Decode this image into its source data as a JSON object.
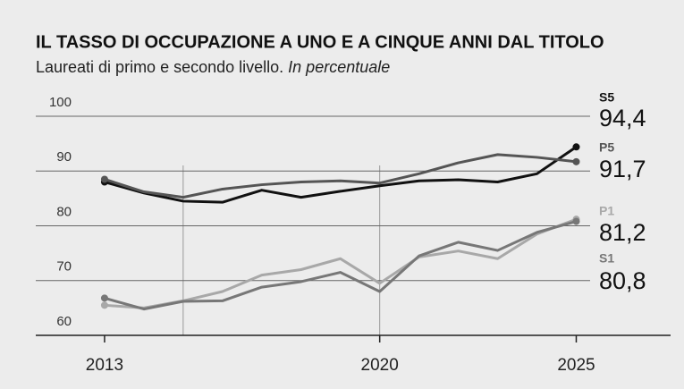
{
  "chart_data": {
    "type": "line",
    "title": "IL TASSO DI OCCUPAZIONE A UNO E A CINQUE ANNI DAL TITOLO",
    "subtitle": "Laureati di primo e secondo livello.",
    "subtitle_note": "In percentuale",
    "x": [
      2013,
      2014,
      2015,
      2016,
      2017,
      2018,
      2019,
      2020,
      2021,
      2022,
      2023,
      2024,
      2025
    ],
    "xlim": [
      2011.25,
      2027.4
    ],
    "xticks": [
      2013,
      2020,
      2025
    ],
    "xgrid": [
      2015,
      2020
    ],
    "ylim": [
      60,
      100
    ],
    "yticks": [
      60,
      70,
      80,
      90,
      100
    ],
    "grid": true,
    "series": [
      {
        "name": "S5",
        "color": "#111111",
        "values": [
          88.0,
          86.0,
          84.5,
          84.3,
          86.5,
          85.2,
          86.3,
          87.3,
          88.2,
          88.4,
          88.0,
          89.5,
          94.4
        ],
        "value_labels": [
          null,
          null,
          null,
          null,
          null,
          null,
          null,
          null,
          null,
          null,
          null,
          null,
          "94,4"
        ]
      },
      {
        "name": "P5",
        "color": "#555555",
        "values": [
          88.5,
          86.2,
          85.2,
          86.7,
          87.5,
          88.0,
          88.2,
          87.8,
          89.5,
          91.5,
          93.0,
          92.5,
          91.7
        ],
        "value_labels": [
          null,
          null,
          null,
          null,
          null,
          null,
          null,
          null,
          null,
          null,
          null,
          null,
          "91,7"
        ]
      },
      {
        "name": "P1",
        "color": "#a8a8a8",
        "values": [
          65.5,
          65.0,
          66.3,
          68.0,
          71.0,
          72.0,
          74.0,
          69.5,
          74.3,
          75.4,
          74.0,
          78.5,
          81.2
        ],
        "value_labels": [
          null,
          null,
          null,
          null,
          null,
          null,
          null,
          null,
          null,
          null,
          null,
          null,
          "81,2"
        ]
      },
      {
        "name": "S1",
        "color": "#777777",
        "values": [
          66.8,
          64.8,
          66.2,
          66.3,
          68.8,
          69.8,
          71.5,
          68.0,
          74.5,
          77.0,
          75.5,
          78.8,
          80.8
        ],
        "value_labels": [
          null,
          null,
          null,
          null,
          null,
          null,
          null,
          null,
          null,
          null,
          null,
          null,
          "80,8"
        ]
      }
    ]
  }
}
